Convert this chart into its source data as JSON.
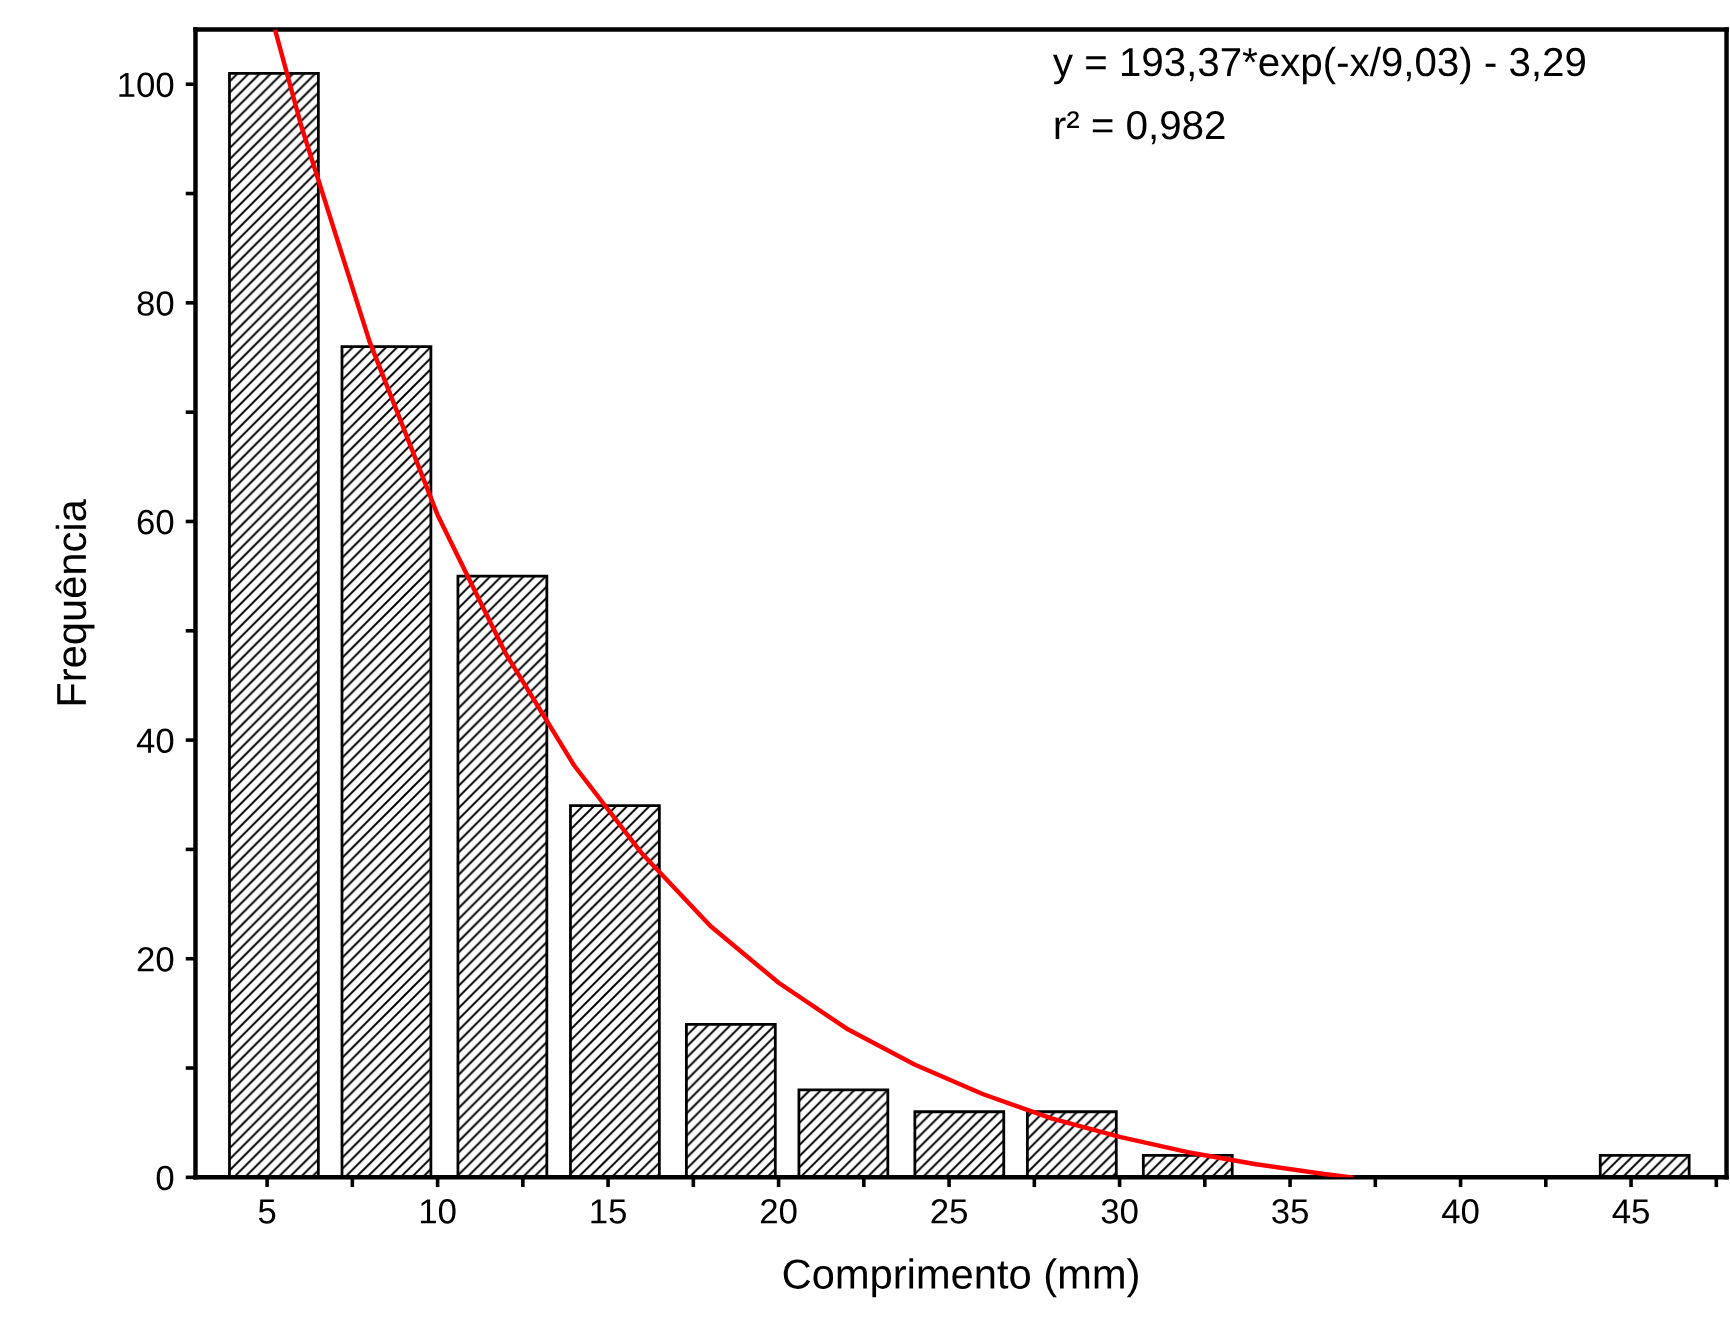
{
  "chart_data": {
    "type": "bar",
    "xlabel": "Comprimento (mm)",
    "ylabel": "Frequência",
    "x": [
      5.2,
      8.5,
      11.9,
      15.2,
      18.6,
      21.9,
      25.3,
      28.6,
      32.0,
      45.4
    ],
    "values": [
      101,
      76,
      55,
      34,
      14,
      8,
      6,
      6,
      2,
      2
    ],
    "color": "#000000",
    "series": [
      {
        "type": "line",
        "color": "#ff0000",
        "x": [
          5.25,
          6,
          8,
          10,
          12,
          14,
          16,
          18,
          20,
          22,
          24,
          26,
          28,
          30,
          32,
          34,
          36,
          36.8
        ],
        "values": [
          104.8,
          96.2,
          76.5,
          60.6,
          47.9,
          37.7,
          29.6,
          23.0,
          17.8,
          13.6,
          10.3,
          7.6,
          5.4,
          3.7,
          2.3,
          1.2,
          0.3,
          0
        ]
      }
    ],
    "annotations": [
      "y = 193,37*exp(-x/9,03) - 3,29",
      "r² = 0,982"
    ],
    "xlim": [
      2.9,
      47.8
    ],
    "ylim": [
      0,
      105
    ],
    "xticks": [
      5,
      {
        "value": 7.5,
        "label": null
      },
      10,
      {
        "value": 12.5,
        "label": null
      },
      15,
      {
        "value": 17.5,
        "label": null
      },
      20,
      {
        "value": 22.5,
        "label": null
      },
      25,
      {
        "value": 27.5,
        "label": null
      },
      30,
      {
        "value": 32.5,
        "label": null
      },
      35,
      {
        "value": 37.5,
        "label": null
      },
      40,
      {
        "value": 42.5,
        "label": null
      },
      45,
      {
        "value": 47.5,
        "label": null
      }
    ],
    "yticks": [
      0,
      {
        "value": 10,
        "label": null
      },
      20,
      {
        "value": 30,
        "label": null
      },
      40,
      {
        "value": 50,
        "label": null
      },
      60,
      {
        "value": 70,
        "label": null
      },
      80,
      {
        "value": 90,
        "label": null
      },
      100
    ],
    "grid": false,
    "legend": false
  }
}
